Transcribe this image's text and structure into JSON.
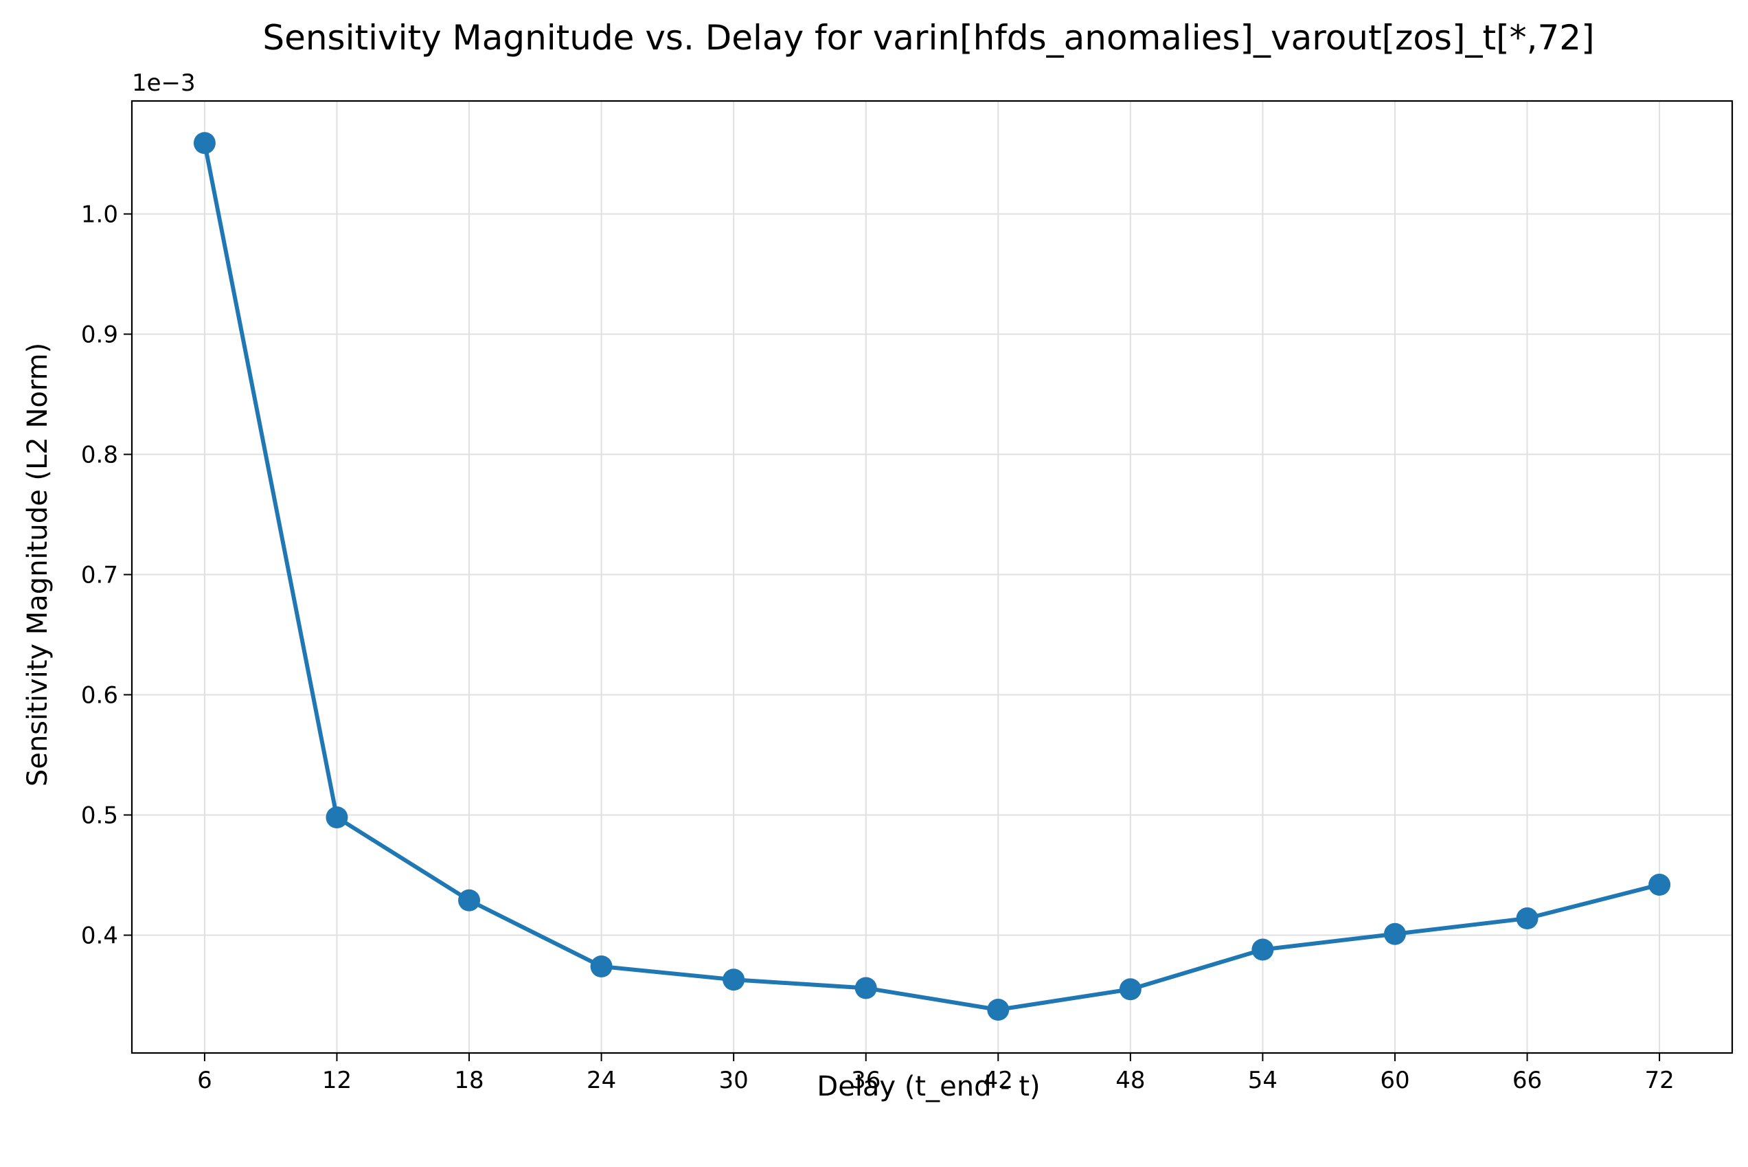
{
  "chart_data": {
    "type": "line",
    "title": "Sensitivity Magnitude vs. Delay for varin[hfds_anomalies]_varout[zos]_t[*,72]",
    "xlabel": "Delay (t_end - t)",
    "ylabel": "Sensitivity Magnitude (L2 Norm)",
    "y_offset_label": "1e−3",
    "y_multiplier": 0.001,
    "x": [
      6,
      12,
      18,
      24,
      30,
      36,
      42,
      48,
      54,
      60,
      66,
      72
    ],
    "series": [
      {
        "values": [
          1.059,
          0.498,
          0.429,
          0.374,
          0.363,
          0.356,
          0.338,
          0.355,
          0.388,
          0.401,
          0.414,
          0.442
        ],
        "color": "#1f77b4",
        "marker": "circle"
      }
    ],
    "xticks": [
      "6",
      "12",
      "18",
      "24",
      "30",
      "36",
      "42",
      "48",
      "54",
      "60",
      "66",
      "72"
    ],
    "yticks": [
      "0.4",
      "0.5",
      "0.6",
      "0.7",
      "0.8",
      "0.9",
      "1.0"
    ],
    "xlim": [
      2.7,
      75.3
    ],
    "ylim": [
      0.302,
      1.094
    ],
    "grid": true,
    "colors": {
      "line": "#1f77b4",
      "grid": "#e0e0e0",
      "axes": "#000000"
    }
  }
}
